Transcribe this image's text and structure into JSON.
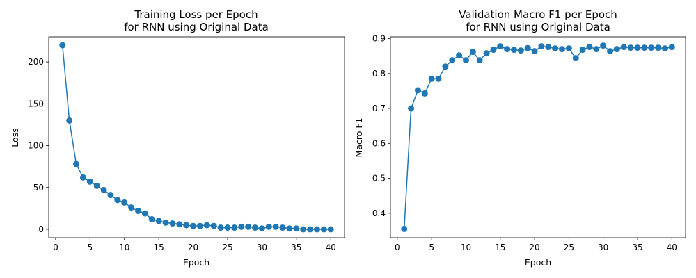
{
  "chart_data": [
    {
      "type": "line",
      "title_lines": [
        "Training Loss per Epoch",
        "for RNN using Original Data"
      ],
      "xlabel": "Epoch",
      "ylabel": "Loss",
      "xlim": [
        -1,
        42
      ],
      "ylim": [
        -10,
        230
      ],
      "xticks": [
        0,
        5,
        10,
        15,
        20,
        25,
        30,
        35,
        40
      ],
      "yticks": [
        0,
        50,
        100,
        150,
        200
      ],
      "grid": false,
      "color": "#1f77b4",
      "series": [
        {
          "x": [
            1,
            2,
            3,
            4,
            5,
            6,
            7,
            8,
            9,
            10,
            11,
            12,
            13,
            14,
            15,
            16,
            17,
            18,
            19,
            20,
            21,
            22,
            23,
            24,
            25,
            26,
            27,
            28,
            29,
            30,
            31,
            32,
            33,
            34,
            35,
            36,
            37,
            38,
            39,
            40
          ],
          "values": [
            220,
            130,
            78,
            62,
            57,
            52,
            47,
            41,
            35,
            32,
            26,
            22,
            19,
            12,
            10,
            8,
            7,
            6,
            5,
            4,
            4,
            5,
            4,
            2,
            2,
            2,
            3,
            3,
            2,
            1,
            3,
            3,
            2,
            1,
            1,
            0,
            0,
            0,
            0,
            0
          ]
        }
      ]
    },
    {
      "type": "line",
      "title_lines": [
        "Validation Macro F1 per Epoch",
        "for RNN using Original Data"
      ],
      "xlabel": "Epoch",
      "ylabel": "Macro F1",
      "xlim": [
        -1,
        42
      ],
      "ylim": [
        0.33,
        0.905
      ],
      "xticks": [
        0,
        5,
        10,
        15,
        20,
        25,
        30,
        35,
        40
      ],
      "yticks": [
        0.4,
        0.5,
        0.6,
        0.7,
        0.8,
        0.9
      ],
      "grid": false,
      "color": "#1f77b4",
      "series": [
        {
          "x": [
            1,
            2,
            3,
            4,
            5,
            6,
            7,
            8,
            9,
            10,
            11,
            12,
            13,
            14,
            15,
            16,
            17,
            18,
            19,
            20,
            21,
            22,
            23,
            24,
            25,
            26,
            27,
            28,
            29,
            30,
            31,
            32,
            33,
            34,
            35,
            36,
            37,
            38,
            39,
            40
          ],
          "values": [
            0.355,
            0.7,
            0.752,
            0.743,
            0.785,
            0.785,
            0.82,
            0.838,
            0.852,
            0.838,
            0.862,
            0.838,
            0.858,
            0.868,
            0.878,
            0.87,
            0.868,
            0.866,
            0.873,
            0.864,
            0.878,
            0.876,
            0.872,
            0.87,
            0.872,
            0.844,
            0.868,
            0.876,
            0.87,
            0.88,
            0.864,
            0.87,
            0.876,
            0.874,
            0.874,
            0.874,
            0.874,
            0.874,
            0.872,
            0.876
          ]
        }
      ]
    }
  ]
}
